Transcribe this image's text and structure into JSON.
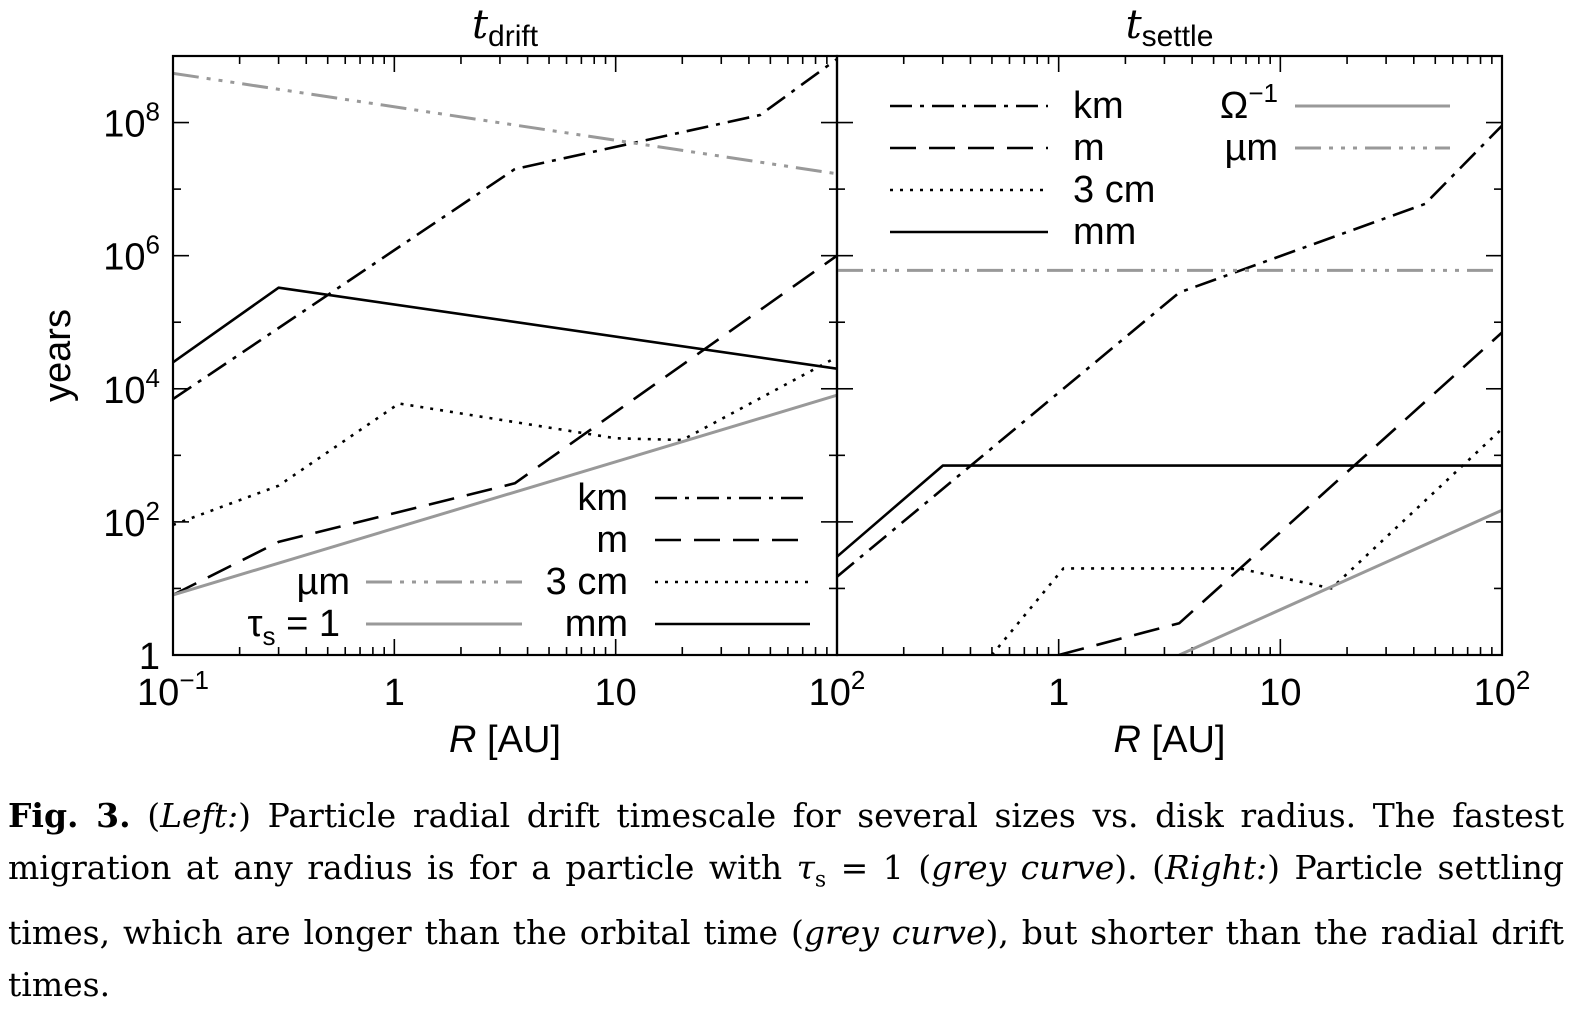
{
  "chart_data": [
    {
      "type": "line",
      "title": "t",
      "title_sub": "drift",
      "xlabel_italic": "R",
      "xlabel_rest": "[AU]",
      "ylabel": "years",
      "x_scale": "log",
      "y_scale": "log",
      "xlim": [
        0.1,
        100
      ],
      "ylim": [
        1,
        1000000000
      ],
      "x_ticks": [
        {
          "v": 0.1,
          "base": "10",
          "exp": "−1"
        },
        {
          "v": 1,
          "base": "1",
          "exp": ""
        },
        {
          "v": 10,
          "base": "10",
          "exp": ""
        },
        {
          "v": 100,
          "base": "10",
          "exp": "2"
        }
      ],
      "y_ticks": [
        {
          "v": 1,
          "base": "1",
          "exp": ""
        },
        {
          "v": 100,
          "base": "10",
          "exp": "2"
        },
        {
          "v": 10000,
          "base": "10",
          "exp": "4"
        },
        {
          "v": 1000000,
          "base": "10",
          "exp": "6"
        },
        {
          "v": 100000000,
          "base": "10",
          "exp": "8"
        }
      ],
      "legend_placement": "bottom-right",
      "series": [
        {
          "name": "km",
          "style": "dashdot",
          "color": "#000000",
          "x": [
            0.1,
            3.5,
            45,
            100
          ],
          "y": [
            7000,
            20000000,
            130000000,
            900000000
          ]
        },
        {
          "name": "m",
          "style": "dash",
          "color": "#000000",
          "x": [
            0.1,
            0.3,
            3.5,
            100
          ],
          "y": [
            8,
            50,
            380,
            1000000
          ]
        },
        {
          "name": "3 cm",
          "style": "dot",
          "color": "#000000",
          "x": [
            0.1,
            0.3,
            1.05,
            10,
            20,
            100
          ],
          "y": [
            90,
            350,
            6000,
            1800,
            1700,
            30000
          ]
        },
        {
          "name": "mm",
          "style": "solid",
          "color": "#000000",
          "x": [
            0.1,
            0.3,
            100
          ],
          "y": [
            25000,
            330000,
            20000
          ]
        },
        {
          "name": "µm",
          "style": "dashdotdotdot",
          "color": "#999999",
          "x": [
            0.1,
            100
          ],
          "y": [
            550000000,
            17000000
          ]
        },
        {
          "name": "τ",
          "name_sub": "s",
          "name_suffix": " = 1",
          "style": "solid",
          "color": "#999999",
          "x": [
            0.1,
            100
          ],
          "y": [
            8,
            8000
          ]
        }
      ]
    },
    {
      "type": "line",
      "title": "t",
      "title_sub": "settle",
      "xlabel_italic": "R",
      "xlabel_rest": "[AU]",
      "x_scale": "log",
      "y_scale": "log",
      "xlim": [
        0.1,
        100
      ],
      "ylim": [
        1,
        1000000000
      ],
      "x_ticks": [
        {
          "v": 1,
          "base": "1",
          "exp": ""
        },
        {
          "v": 10,
          "base": "10",
          "exp": ""
        },
        {
          "v": 100,
          "base": "10",
          "exp": "2"
        }
      ],
      "legend_placement": "top",
      "series": [
        {
          "name": "km",
          "style": "dashdot",
          "color": "#000000",
          "x": [
            0.1,
            3.5,
            45,
            100
          ],
          "y": [
            15,
            280000,
            6000000,
            90000000
          ]
        },
        {
          "name": "m",
          "style": "dash",
          "color": "#000000",
          "x": [
            1,
            3.5,
            100
          ],
          "y": [
            1,
            3,
            70000
          ]
        },
        {
          "name": "3 cm",
          "style": "dot",
          "color": "#000000",
          "x": [
            0.5,
            1.05,
            6.5,
            17,
            100
          ],
          "y": [
            1,
            20,
            20,
            10,
            2500
          ]
        },
        {
          "name": "mm",
          "style": "solid",
          "color": "#000000",
          "x": [
            0.1,
            0.3,
            100
          ],
          "y": [
            30,
            700,
            700
          ]
        },
        {
          "name": "Ω",
          "name_exp": "−1",
          "style": "solid",
          "color": "#999999",
          "x": [
            3.5,
            100
          ],
          "y": [
            1,
            150
          ]
        },
        {
          "name": "µm",
          "style": "dashdotdotdot",
          "color": "#999999",
          "x": [
            0.1,
            100
          ],
          "y": [
            600000,
            600000
          ]
        }
      ]
    }
  ],
  "caption": {
    "fig_label": "Fig. 3.",
    "left_tag": "Left:",
    "t1": " Particle radial drift timescale for several sizes vs. disk radius. The fastest migration at any radius is for a particle with ",
    "tau": "τ",
    "tau_sub": "s",
    "t2": " = 1 (",
    "grey1": "grey curve",
    "t3": "). (",
    "right_tag": "Right:",
    "t4": ") Particle settling times, which are longer than the orbital time (",
    "grey2": "grey curve",
    "t5": "), but shorter than the radial drift times."
  }
}
